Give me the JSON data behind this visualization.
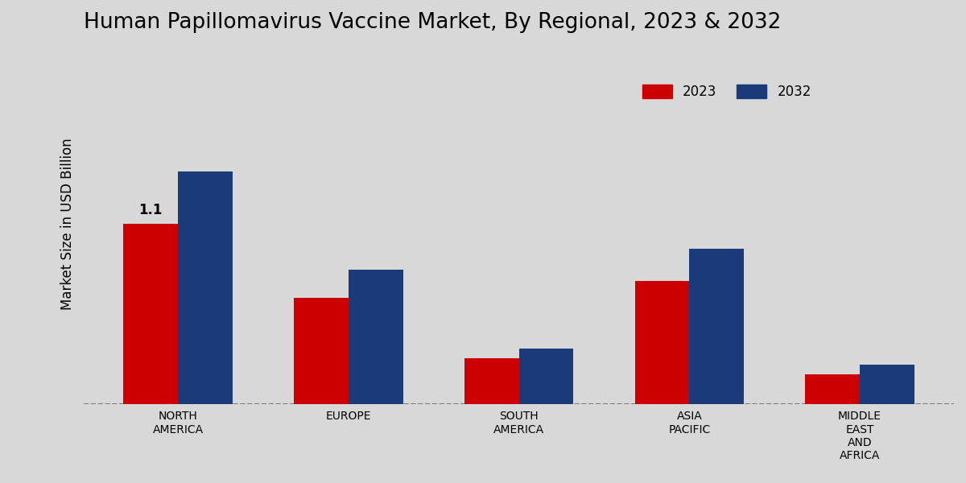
{
  "title": "Human Papillomavirus Vaccine Market, By Regional, 2023 & 2032",
  "ylabel": "Market Size in USD Billion",
  "categories": [
    "NORTH\nAMERICA",
    "EUROPE",
    "SOUTH\nAMERICA",
    "ASIA\nPACIFIC",
    "MIDDLE\nEAST\nAND\nAFRICA"
  ],
  "values_2023": [
    1.1,
    0.65,
    0.28,
    0.75,
    0.18
  ],
  "values_2032": [
    1.42,
    0.82,
    0.34,
    0.95,
    0.24
  ],
  "color_2023": "#cc0000",
  "color_2032": "#1a3a7a",
  "annotation_text": "1.1",
  "annotation_bar_index": 0,
  "background_color": "#d8d8d8",
  "bar_width": 0.32,
  "legend_labels": [
    "2023",
    "2032"
  ],
  "title_fontsize": 19,
  "ylabel_fontsize": 12,
  "tick_fontsize": 10,
  "legend_fontsize": 12,
  "ylim": [
    0,
    2.2
  ]
}
